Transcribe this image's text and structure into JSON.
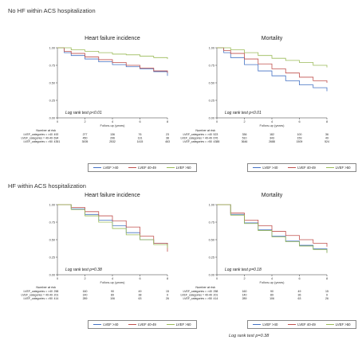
{
  "sections": [
    {
      "label": "No HF within ACS hospitalization"
    },
    {
      "label": "HF within ACS hospitalization"
    }
  ],
  "colors": {
    "ef_low": "#4472c4",
    "ef_mid": "#c0504d",
    "ef_high": "#9bbb59"
  },
  "legend": [
    "LVEF >40",
    "LVEF 40-49",
    "LVEF >50"
  ],
  "footer": {
    "text": "Log rank test p=0.38"
  },
  "chart_data": [
    {
      "type": "line",
      "title": "Heart failure incidence",
      "xlabel": "Follow-up (years)",
      "xlim": [
        0,
        8
      ],
      "ylim": [
        0,
        1
      ],
      "xticks": [
        "0",
        "2",
        "4",
        "6",
        "8"
      ],
      "yticks": [
        "0.00",
        "0.25",
        "0.50",
        "0.75",
        "1.00"
      ],
      "annotation": "Log rank test p<0.01",
      "risk_title": "Number at risk",
      "risk_rows": [
        {
          "label": "LVEF_categories = >40",
          "values": [
            "492",
            "277",
            "136",
            "76",
            "23"
          ]
        },
        {
          "label": "LVEF_categories = 40-49",
          "values": [
            "694",
            "450",
            "296",
            "131",
            "38"
          ]
        },
        {
          "label": "LVEF_categories = >50",
          "values": [
            "4351",
            "3005",
            "2532",
            "1415",
            "463"
          ]
        }
      ],
      "series": [
        {
          "name": "LVEF >40",
          "color": "#4472c4",
          "x": [
            0,
            0.5,
            1,
            2,
            3,
            4,
            5,
            6,
            7,
            8
          ],
          "y": [
            1.0,
            0.93,
            0.89,
            0.84,
            0.8,
            0.76,
            0.73,
            0.7,
            0.66,
            0.6
          ]
        },
        {
          "name": "LVEF 40-49",
          "color": "#c0504d",
          "x": [
            0,
            0.5,
            1,
            2,
            3,
            4,
            5,
            6,
            7,
            8
          ],
          "y": [
            1.0,
            0.95,
            0.92,
            0.87,
            0.83,
            0.79,
            0.75,
            0.71,
            0.67,
            0.64
          ]
        },
        {
          "name": "LVEF >50",
          "color": "#9bbb59",
          "x": [
            0,
            1,
            2,
            3,
            4,
            5,
            6,
            7,
            8
          ],
          "y": [
            1.0,
            0.97,
            0.95,
            0.93,
            0.91,
            0.9,
            0.88,
            0.86,
            0.84
          ]
        }
      ]
    },
    {
      "type": "line",
      "title": "Mortality",
      "xlabel": "Follow-up (years)",
      "xlim": [
        0,
        8
      ],
      "ylim": [
        0,
        1
      ],
      "xticks": [
        "0",
        "2",
        "4",
        "6",
        "8"
      ],
      "yticks": [
        "0.00",
        "0.25",
        "0.50",
        "0.75",
        "1.00"
      ],
      "annotation": "Log rank test p<0.01",
      "risk_title": "Number at risk",
      "risk_rows": [
        {
          "label": "LVEF_categories = >40",
          "values": [
            "523",
            "336",
            "182",
            "100",
            "36"
          ]
        },
        {
          "label": "LVEF_categories = 40-49",
          "values": [
            "676",
            "510",
            "343",
            "159",
            "49"
          ]
        },
        {
          "label": "LVEF_categories = >50",
          "values": [
            "4388",
            "3646",
            "2688",
            "1509",
            "524"
          ]
        }
      ],
      "series": [
        {
          "name": "LVEF >40",
          "color": "#4472c4",
          "x": [
            0,
            0.5,
            1,
            2,
            3,
            4,
            5,
            6,
            7,
            8
          ],
          "y": [
            1.0,
            0.93,
            0.86,
            0.76,
            0.67,
            0.6,
            0.53,
            0.47,
            0.43,
            0.38
          ]
        },
        {
          "name": "LVEF 40-49",
          "color": "#c0504d",
          "x": [
            0,
            0.5,
            1,
            2,
            3,
            4,
            5,
            6,
            7,
            8
          ],
          "y": [
            1.0,
            0.96,
            0.92,
            0.84,
            0.77,
            0.7,
            0.64,
            0.58,
            0.53,
            0.5
          ]
        },
        {
          "name": "LVEF >50",
          "color": "#9bbb59",
          "x": [
            0,
            1,
            2,
            3,
            4,
            5,
            6,
            7,
            8
          ],
          "y": [
            1.0,
            0.97,
            0.93,
            0.89,
            0.85,
            0.82,
            0.79,
            0.75,
            0.72
          ]
        }
      ]
    },
    {
      "type": "line",
      "title": "Heart failure incidence",
      "xlabel": "Follow-up (years)",
      "xlim": [
        0,
        8
      ],
      "ylim": [
        0,
        1
      ],
      "xticks": [
        "0",
        "2",
        "4",
        "6",
        "8"
      ],
      "yticks": [
        "0.00",
        "0.25",
        "0.50",
        "0.75",
        "1.00"
      ],
      "annotation": "Log rank test p=0.38",
      "risk_title": "Number at risk",
      "risk_rows": [
        {
          "label": "LVEF_categories = >40",
          "values": [
            "258",
            "160",
            "90",
            "49",
            "15"
          ]
        },
        {
          "label": "LVEF_categories = 40-49",
          "values": [
            "201",
            "140",
            "89",
            "38",
            "9"
          ]
        },
        {
          "label": "LVEF_categories = >50",
          "values": [
            "414",
            "289",
            "106",
            "63",
            "26"
          ]
        }
      ],
      "series": [
        {
          "name": "LVEF >40",
          "color": "#4472c4",
          "x": [
            0,
            1,
            2,
            3,
            4,
            5,
            6,
            7,
            8
          ],
          "y": [
            1.0,
            0.94,
            0.86,
            0.78,
            0.7,
            0.6,
            0.5,
            0.45,
            0.4
          ]
        },
        {
          "name": "LVEF 40-49",
          "color": "#c0504d",
          "x": [
            0,
            1,
            2,
            3,
            4,
            5,
            6,
            7,
            8
          ],
          "y": [
            1.0,
            0.96,
            0.9,
            0.84,
            0.77,
            0.68,
            0.55,
            0.45,
            0.33
          ]
        },
        {
          "name": "LVEF >50",
          "color": "#9bbb59",
          "x": [
            0,
            1,
            2,
            3,
            4,
            5,
            6,
            7,
            8
          ],
          "y": [
            1.0,
            0.93,
            0.84,
            0.75,
            0.66,
            0.57,
            0.5,
            0.43,
            0.38
          ]
        }
      ]
    },
    {
      "type": "line",
      "title": "Mortality",
      "xlabel": "Follow-up (years)",
      "xlim": [
        0,
        8
      ],
      "ylim": [
        0,
        1
      ],
      "xticks": [
        "0",
        "2",
        "4",
        "6",
        "8"
      ],
      "yticks": [
        "0.00",
        "0.25",
        "0.50",
        "0.75",
        "1.00"
      ],
      "annotation": "Log rank test p=0.18",
      "risk_title": "Number at risk",
      "risk_rows": [
        {
          "label": "LVEF_categories = >40",
          "values": [
            "258",
            "160",
            "90",
            "49",
            "15"
          ]
        },
        {
          "label": "LVEF_categories = 40-49",
          "values": [
            "201",
            "140",
            "89",
            "36",
            "9"
          ]
        },
        {
          "label": "LVEF_categories = >50",
          "values": [
            "414",
            "289",
            "106",
            "63",
            "26"
          ]
        }
      ],
      "series": [
        {
          "name": "LVEF >40",
          "color": "#4472c4",
          "x": [
            0,
            1,
            2,
            3,
            4,
            5,
            6,
            7,
            8
          ],
          "y": [
            1.0,
            0.86,
            0.74,
            0.64,
            0.55,
            0.48,
            0.42,
            0.37,
            0.32
          ]
        },
        {
          "name": "LVEF 40-49",
          "color": "#c0504d",
          "x": [
            0,
            1,
            2,
            3,
            4,
            5,
            6,
            7,
            8
          ],
          "y": [
            1.0,
            0.88,
            0.78,
            0.7,
            0.62,
            0.56,
            0.5,
            0.45,
            0.4
          ]
        },
        {
          "name": "LVEF >50",
          "color": "#9bbb59",
          "x": [
            0,
            1,
            2,
            3,
            4,
            5,
            6,
            7,
            8
          ],
          "y": [
            1.0,
            0.85,
            0.73,
            0.63,
            0.54,
            0.47,
            0.41,
            0.36,
            0.31
          ]
        }
      ]
    }
  ]
}
